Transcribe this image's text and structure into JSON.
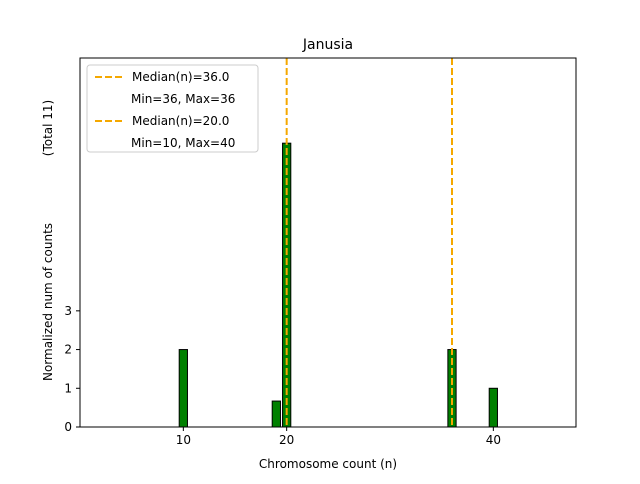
{
  "chart_data": {
    "type": "bar",
    "title": "Janusia",
    "xlabel": "Chromosome count (n)",
    "ylabel": "Normalized num of counts",
    "ylabel_note": "(Total 11)",
    "xlim": [
      0,
      48
    ],
    "ylim": [
      0,
      9.53
    ],
    "xticks": [
      10,
      20,
      40
    ],
    "yticks": [
      0,
      1,
      2,
      3
    ],
    "bar_width": 0.8,
    "bar_color": "#008000",
    "bars": [
      {
        "x": 10,
        "y": 2
      },
      {
        "x": 19,
        "y": 0.67
      },
      {
        "x": 20,
        "y": 7.33
      },
      {
        "x": 36,
        "y": 2
      },
      {
        "x": 40,
        "y": 1
      }
    ],
    "median_lines": [
      {
        "x": 36,
        "label": "Median(n)=36.0",
        "range_label": "Min=36, Max=36",
        "color": "#f5a800"
      },
      {
        "x": 20,
        "label": "Median(n)=20.0",
        "range_label": "Min=10, Max=40",
        "color": "#f5a800"
      }
    ],
    "legend_position": "top-left",
    "grid": false
  }
}
